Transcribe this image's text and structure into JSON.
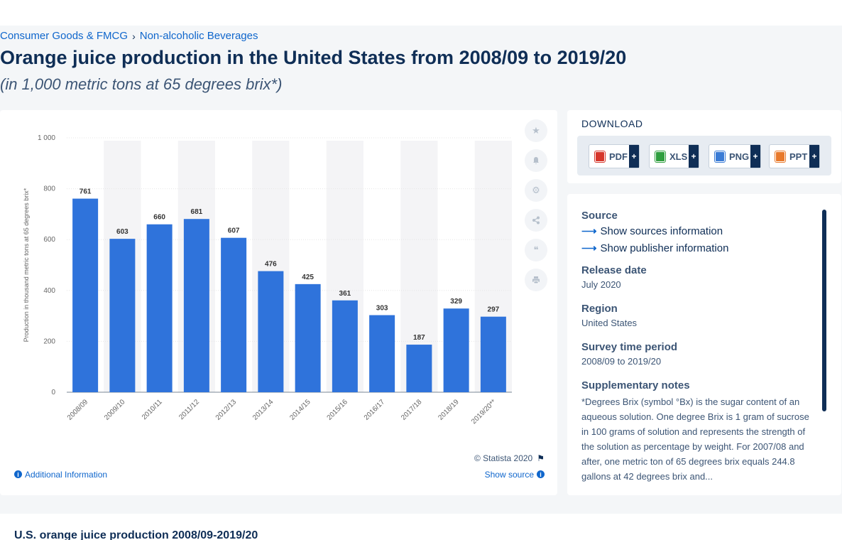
{
  "breadcrumb": {
    "items": [
      "Consumer Goods & FMCG",
      "Non-alcoholic Beverages"
    ],
    "separator": "›"
  },
  "title": "Orange juice production in the United States from 2008/09 to 2019/20",
  "subtitle": "(in 1,000 metric tons at 65 degrees brix*)",
  "tools": {
    "icons": [
      "star-icon",
      "bell-icon",
      "gear-icon",
      "share-icon",
      "quote-icon",
      "print-icon"
    ]
  },
  "chart_footer": {
    "copyright": "© Statista 2020",
    "additional_info": "Additional Information",
    "show_source": "Show source"
  },
  "download": {
    "heading": "DOWNLOAD",
    "buttons": [
      {
        "label": "PDF",
        "color": "#d6362b"
      },
      {
        "label": "XLS",
        "color": "#2f9e3e"
      },
      {
        "label": "PNG",
        "color": "#3a7bd5"
      },
      {
        "label": "PPT",
        "color": "#e8792b"
      }
    ],
    "plus": "+"
  },
  "meta": {
    "source_heading": "Source",
    "show_sources": "Show sources information",
    "show_publisher": "Show publisher information",
    "release_heading": "Release date",
    "release_value": "July 2020",
    "region_heading": "Region",
    "region_value": "United States",
    "survey_heading": "Survey time period",
    "survey_value": "2008/09 to 2019/20",
    "notes_heading": "Supplementary notes",
    "notes_text": "*Degrees Brix (symbol °Bx) is the sugar content of an aqueous solution. One degree Brix is 1 gram of sucrose in 100 grams of solution and represents the strength of the solution as percentage by weight. For 2007/08 and after, one metric ton of 65 degrees brix equals 244.8 gallons at 42 degrees brix and..."
  },
  "bottom": {
    "heading": "U.S. orange juice production 2008/09-2019/20"
  },
  "chart_data": {
    "type": "bar",
    "categories": [
      "2008/09",
      "2009/10",
      "2010/11",
      "2011/12",
      "2012/13",
      "2013/14",
      "2014/15",
      "2015/16",
      "2016/17",
      "2017/18",
      "2018/19",
      "2019/20**"
    ],
    "values": [
      761,
      603,
      660,
      681,
      607,
      476,
      425,
      361,
      303,
      187,
      329,
      297
    ],
    "ylabel": "Production in thousand metric tons at 65 degrees brix*",
    "ylim": [
      0,
      1000
    ],
    "yticks": [
      0,
      200,
      400,
      600,
      800,
      1000
    ],
    "ytick_labels": [
      "0",
      "200",
      "400",
      "600",
      "800",
      "1 000"
    ],
    "bar_color": "#2f73db",
    "alt_band_color": "#f4f4f6",
    "data_labels": true,
    "grid": true
  }
}
